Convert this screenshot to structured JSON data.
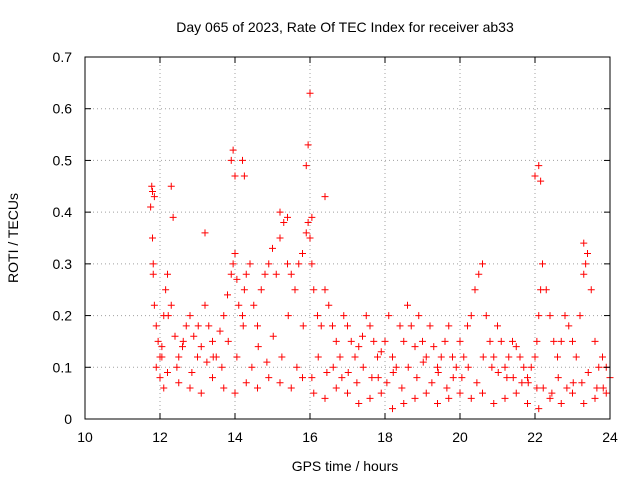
{
  "chart_data": {
    "type": "scatter",
    "title": "Day 065 of 2023, Rate Of TEC Index for receiver ab33",
    "xlabel": "GPS time / hours",
    "ylabel": "ROTI / TECUs",
    "xlim": [
      10,
      24
    ],
    "ylim": [
      0,
      0.7
    ],
    "xticks": [
      10,
      12,
      14,
      16,
      18,
      20,
      22,
      24
    ],
    "yticks": [
      0,
      0.1,
      0.2,
      0.3,
      0.4,
      0.5,
      0.6,
      0.7
    ],
    "xtick_labels": [
      "10",
      "12",
      "14",
      "16",
      "18",
      "20",
      "22",
      "24"
    ],
    "ytick_labels": [
      "0",
      "0.1",
      "0.2",
      "0.3",
      "0.4",
      "0.5",
      "0.6",
      "0.7"
    ],
    "grid": true,
    "marker": "+",
    "series": [
      {
        "color": "#ff0000",
        "x": [
          11.75,
          11.78,
          11.8,
          11.82,
          11.85,
          11.9,
          11.95,
          12.0,
          12.05,
          12.1,
          12.15,
          12.2,
          12.3,
          12.4,
          12.5,
          12.6,
          12.7,
          12.8,
          12.9,
          13.0,
          13.1,
          13.2,
          13.3,
          13.4,
          13.5,
          13.6,
          13.7,
          13.8,
          13.9,
          13.95,
          14.0,
          14.05,
          14.1,
          14.2,
          14.25,
          14.3,
          14.4,
          14.5,
          14.6,
          14.7,
          14.8,
          14.9,
          15.0,
          15.1,
          15.2,
          15.3,
          15.4,
          15.5,
          15.6,
          15.7,
          15.8,
          15.9,
          15.95,
          16.0,
          16.05,
          16.1,
          16.2,
          16.3,
          16.4,
          16.5,
          16.6,
          16.7,
          16.8,
          16.9,
          17.0,
          17.1,
          17.2,
          17.3,
          17.4,
          17.5,
          17.6,
          17.7,
          17.8,
          17.9,
          18.0,
          18.1,
          18.2,
          18.3,
          18.4,
          18.5,
          18.6,
          18.7,
          18.8,
          18.9,
          19.0,
          19.1,
          19.2,
          19.3,
          19.4,
          19.5,
          19.6,
          19.7,
          19.8,
          19.9,
          20.0,
          20.1,
          20.2,
          20.3,
          20.4,
          20.5,
          20.6,
          20.7,
          20.8,
          20.9,
          21.0,
          21.1,
          21.2,
          21.3,
          21.4,
          21.5,
          21.6,
          21.7,
          21.8,
          21.9,
          22.0,
          22.05,
          22.1,
          22.15,
          22.2,
          22.3,
          22.4,
          22.5,
          22.6,
          22.7,
          22.8,
          22.9,
          23.0,
          23.1,
          23.2,
          23.3,
          23.4,
          23.5,
          23.6,
          23.7,
          23.8,
          23.9,
          24.0,
          11.8,
          11.85,
          12.3,
          12.35,
          13.2,
          13.9,
          13.95,
          14.0,
          14.2,
          14.25,
          15.2,
          15.4,
          15.9,
          15.95,
          16.0,
          16.05,
          16.4,
          22.0,
          22.1,
          22.15,
          23.3,
          23.35,
          11.9,
          12.0,
          12.1,
          12.2,
          12.5,
          12.8,
          13.1,
          13.4,
          13.7,
          14.0,
          14.3,
          14.6,
          14.9,
          15.2,
          15.5,
          15.8,
          16.1,
          16.4,
          16.7,
          17.0,
          17.3,
          17.6,
          17.9,
          18.2,
          18.5,
          18.8,
          19.1,
          19.4,
          19.7,
          20.0,
          20.3,
          20.6,
          20.9,
          21.2,
          21.5,
          21.8,
          22.1,
          22.4,
          22.7,
          23.0,
          23.3,
          23.6,
          23.9,
          12.05,
          12.45,
          12.85,
          13.25,
          13.65,
          14.05,
          14.45,
          14.85,
          15.25,
          15.65,
          16.05,
          16.45,
          16.85,
          17.25,
          17.65,
          18.05,
          18.45,
          18.85,
          19.25,
          19.65,
          20.05,
          20.45,
          20.85,
          21.25,
          21.65,
          22.05,
          22.45,
          22.85,
          23.25,
          23.65,
          11.82,
          12.22,
          12.62,
          13.02,
          13.42,
          13.82,
          14.22,
          14.62,
          15.02,
          15.42,
          15.82,
          16.22,
          16.62,
          17.02,
          17.42,
          17.82,
          18.22,
          18.62,
          19.02,
          19.42,
          19.82,
          20.22,
          20.62,
          21.02,
          21.42,
          21.82,
          22.22,
          22.62,
          23.02,
          23.42,
          23.82
        ],
        "y": [
          0.41,
          0.45,
          0.35,
          0.28,
          0.22,
          0.18,
          0.15,
          0.12,
          0.14,
          0.2,
          0.25,
          0.28,
          0.22,
          0.16,
          0.12,
          0.14,
          0.18,
          0.2,
          0.16,
          0.12,
          0.14,
          0.22,
          0.18,
          0.15,
          0.12,
          0.17,
          0.2,
          0.24,
          0.28,
          0.3,
          0.32,
          0.27,
          0.22,
          0.2,
          0.25,
          0.28,
          0.3,
          0.22,
          0.18,
          0.25,
          0.28,
          0.3,
          0.33,
          0.28,
          0.35,
          0.38,
          0.3,
          0.28,
          0.25,
          0.3,
          0.32,
          0.36,
          0.38,
          0.35,
          0.3,
          0.25,
          0.2,
          0.18,
          0.25,
          0.22,
          0.18,
          0.15,
          0.12,
          0.2,
          0.18,
          0.15,
          0.12,
          0.14,
          0.16,
          0.2,
          0.18,
          0.15,
          0.12,
          0.13,
          0.15,
          0.2,
          0.12,
          0.1,
          0.18,
          0.15,
          0.22,
          0.18,
          0.14,
          0.2,
          0.15,
          0.12,
          0.18,
          0.14,
          0.1,
          0.12,
          0.15,
          0.18,
          0.12,
          0.1,
          0.15,
          0.12,
          0.18,
          0.2,
          0.25,
          0.28,
          0.3,
          0.2,
          0.15,
          0.12,
          0.18,
          0.15,
          0.1,
          0.12,
          0.15,
          0.14,
          0.12,
          0.1,
          0.08,
          0.1,
          0.12,
          0.15,
          0.2,
          0.25,
          0.3,
          0.25,
          0.2,
          0.15,
          0.12,
          0.15,
          0.2,
          0.18,
          0.15,
          0.12,
          0.2,
          0.28,
          0.32,
          0.25,
          0.15,
          0.1,
          0.12,
          0.1,
          0.08,
          0.44,
          0.43,
          0.45,
          0.39,
          0.36,
          0.5,
          0.52,
          0.47,
          0.5,
          0.47,
          0.4,
          0.39,
          0.49,
          0.53,
          0.63,
          0.39,
          0.43,
          0.47,
          0.49,
          0.46,
          0.34,
          0.3,
          0.1,
          0.08,
          0.06,
          0.09,
          0.07,
          0.06,
          0.05,
          0.08,
          0.06,
          0.05,
          0.07,
          0.06,
          0.08,
          0.07,
          0.06,
          0.08,
          0.05,
          0.04,
          0.06,
          0.05,
          0.03,
          0.04,
          0.05,
          0.02,
          0.03,
          0.04,
          0.05,
          0.03,
          0.04,
          0.05,
          0.04,
          0.05,
          0.03,
          0.04,
          0.05,
          0.03,
          0.02,
          0.04,
          0.03,
          0.05,
          0.03,
          0.04,
          0.05,
          0.12,
          0.1,
          0.09,
          0.11,
          0.1,
          0.12,
          0.1,
          0.11,
          0.12,
          0.1,
          0.08,
          0.09,
          0.08,
          0.07,
          0.08,
          0.07,
          0.06,
          0.08,
          0.07,
          0.06,
          0.08,
          0.07,
          0.1,
          0.08,
          0.07,
          0.06,
          0.05,
          0.06,
          0.07,
          0.06,
          0.3,
          0.2,
          0.15,
          0.18,
          0.12,
          0.15,
          0.18,
          0.14,
          0.16,
          0.2,
          0.18,
          0.12,
          0.1,
          0.09,
          0.1,
          0.08,
          0.09,
          0.1,
          0.11,
          0.09,
          0.08,
          0.1,
          0.12,
          0.09,
          0.08,
          0.07,
          0.06,
          0.08,
          0.07,
          0.09,
          0.06
        ]
      }
    ]
  }
}
